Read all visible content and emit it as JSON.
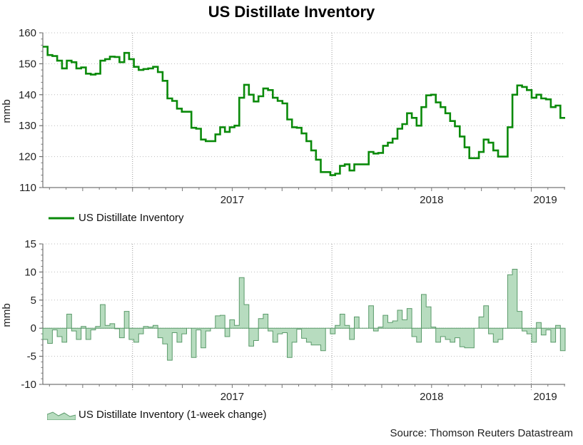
{
  "title": "US Distillate Inventory",
  "source": "Source: Thomson Reuters Datastream",
  "chart_data": [
    {
      "type": "line",
      "ylabel": "mmb",
      "ylim": [
        110,
        160
      ],
      "yticks": [
        110,
        120,
        130,
        140,
        150,
        160
      ],
      "x_start": 2016.55,
      "x_end": 2019.17,
      "year_labels": [
        "2017",
        "2018",
        "2019"
      ],
      "year_ticks": [
        2017,
        2018,
        2019
      ],
      "legend": "US Distillate Inventory",
      "color": "#0a8a0a",
      "weekly_values": [
        155.5,
        152.8,
        152.5,
        151.0,
        148.5,
        151.0,
        150.5,
        148.5,
        148.8,
        146.8,
        146.5,
        146.8,
        151.0,
        151.5,
        152.3,
        152.2,
        150.5,
        153.5,
        151.5,
        149.0,
        148.0,
        148.3,
        148.5,
        149.0,
        147.3,
        144.5,
        138.8,
        138.0,
        135.5,
        134.5,
        134.5,
        129.3,
        129.0,
        125.5,
        125.0,
        125.0,
        127.2,
        129.5,
        128.0,
        129.5,
        130.0,
        139.0,
        143.2,
        140.0,
        137.8,
        139.5,
        142.0,
        141.5,
        139.0,
        138.0,
        137.2,
        132.0,
        129.5,
        129.3,
        127.5,
        125.0,
        122.0,
        119.0,
        115.0,
        115.0,
        114.0,
        114.5,
        117.0,
        117.5,
        115.5,
        117.5,
        117.5,
        117.5,
        121.5,
        121.0,
        121.2,
        123.5,
        124.5,
        125.8,
        129.0,
        130.5,
        134.0,
        132.5,
        130.0,
        136.0,
        139.8,
        140.0,
        137.5,
        136.0,
        134.0,
        131.5,
        129.8,
        126.5,
        123.0,
        119.5,
        119.5,
        121.5,
        125.5,
        124.5,
        122.0,
        120.0,
        120.0,
        129.5,
        140.0,
        143.0,
        142.5,
        141.5,
        139.0,
        140.0,
        138.8,
        138.5,
        136.0,
        136.5,
        132.5
      ]
    },
    {
      "type": "area",
      "ylabel": "mmb",
      "ylim": [
        -10,
        15
      ],
      "yticks": [
        -10,
        -5,
        0,
        5,
        10,
        15
      ],
      "x_start": 2016.55,
      "x_end": 2019.17,
      "year_labels": [
        "2017",
        "2018",
        "2019"
      ],
      "year_ticks": [
        2017,
        2018,
        2019
      ],
      "legend": "US Distillate Inventory (1-week change)",
      "fill_color": "#b7dcbf",
      "line_color": "#5a9a6a",
      "weekly_values": [
        -2.0,
        -2.7,
        -0.3,
        -1.5,
        -2.5,
        2.5,
        -0.5,
        -2.0,
        0.3,
        -2.0,
        -0.3,
        0.3,
        4.2,
        0.5,
        0.8,
        -0.1,
        -1.7,
        3.0,
        -2.0,
        -2.5,
        -1.0,
        0.3,
        0.2,
        0.5,
        -1.7,
        -2.8,
        -5.7,
        -0.8,
        -2.5,
        -1.0,
        0.0,
        -5.2,
        -0.3,
        -3.5,
        -0.5,
        0.0,
        2.2,
        2.3,
        -1.5,
        1.5,
        0.5,
        9.0,
        4.2,
        -3.2,
        -2.2,
        1.7,
        2.5,
        -0.5,
        -2.5,
        -1.0,
        -0.8,
        -5.2,
        -2.5,
        -0.2,
        -1.8,
        -2.5,
        -3.0,
        -3.0,
        -4.0,
        0.0,
        -1.0,
        0.5,
        2.5,
        0.5,
        -2.0,
        2.0,
        0.0,
        0.0,
        4.0,
        -0.5,
        0.2,
        2.3,
        1.0,
        1.3,
        3.2,
        1.5,
        3.5,
        -1.5,
        -2.5,
        6.0,
        3.8,
        0.2,
        -2.5,
        -1.5,
        -2.0,
        -2.5,
        -1.7,
        -3.3,
        -3.5,
        -3.5,
        0.0,
        2.0,
        4.0,
        -1.0,
        -2.5,
        -2.0,
        0.0,
        9.5,
        10.5,
        3.0,
        -0.5,
        -1.0,
        -2.5,
        1.0,
        -1.2,
        -0.3,
        -2.5,
        0.5,
        -4.0
      ]
    }
  ]
}
